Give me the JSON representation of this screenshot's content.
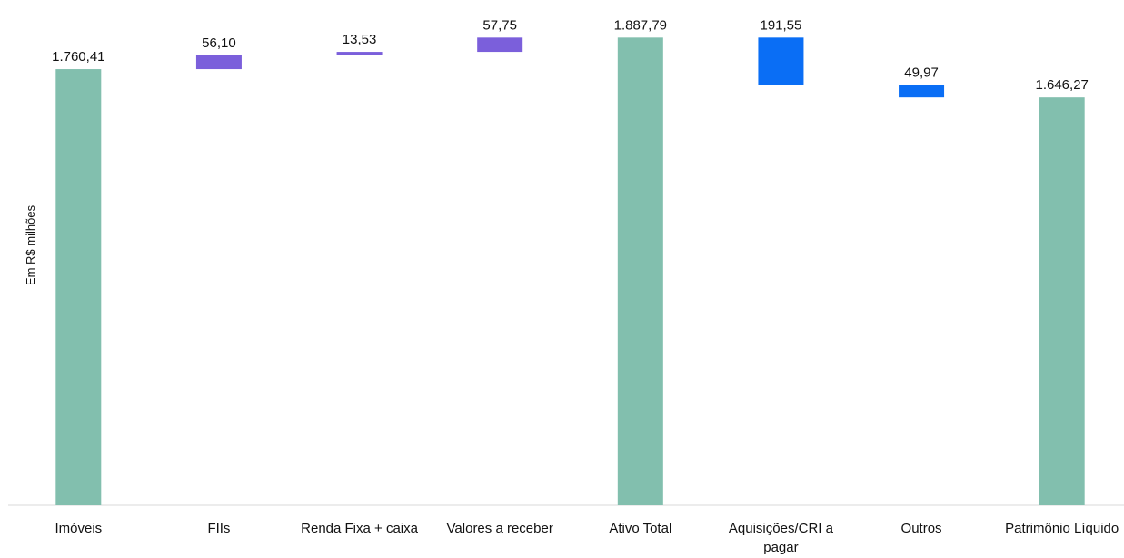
{
  "chart_data": {
    "type": "waterfall",
    "y_label": "Em R$ milhões",
    "categories": [
      "Imóveis",
      "FIIs",
      "Renda Fixa + caixa",
      "Valores a receber",
      "Ativo Total",
      "Aquisições/CRI a pagar",
      "Outros",
      "Patrimônio Líquido"
    ],
    "values": [
      1760.41,
      56.1,
      13.53,
      57.75,
      1887.79,
      191.55,
      49.97,
      1646.27
    ],
    "value_labels": [
      "1.760,41",
      "56,10",
      "13,53",
      "57,75",
      "1.887,79",
      "191,55",
      "49,97",
      "1.646,27"
    ],
    "measure": [
      "absolute",
      "increase",
      "increase",
      "increase",
      "total",
      "decrease",
      "decrease",
      "total"
    ],
    "colors": {
      "absolute": "#82bfae",
      "total": "#82bfae",
      "increase": "#7b5fdb",
      "decrease": "#0a6ef5"
    },
    "ylim": [
      0,
      1900
    ]
  }
}
